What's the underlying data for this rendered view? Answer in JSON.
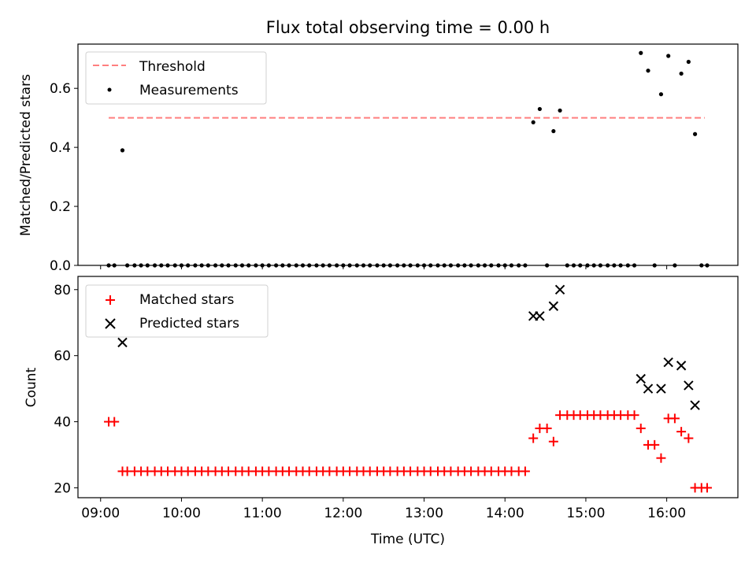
{
  "title": "Flux total observing time = 0.00 h",
  "chart_data": [
    {
      "type": "scatter",
      "ylabel": "Matched/Predicted stars",
      "ylim": [
        0,
        0.75
      ],
      "yticks": [
        "0.0",
        "0.2",
        "0.4",
        "0.6"
      ],
      "yticks_values": [
        0.0,
        0.2,
        0.4,
        0.6
      ],
      "xlim_hours": [
        8.72,
        16.88
      ],
      "threshold": {
        "name": "Threshold",
        "value": 0.5,
        "x_range": [
          9.1,
          16.47
        ],
        "color": "#ff7f7f"
      },
      "series": [
        {
          "name": "Measurements",
          "color": "#000000",
          "points": [
            [
              9.1,
              0
            ],
            [
              9.17,
              0
            ],
            [
              9.27,
              0.39
            ],
            [
              9.33,
              0
            ],
            [
              9.42,
              0
            ],
            [
              9.5,
              0
            ],
            [
              9.58,
              0
            ],
            [
              9.67,
              0
            ],
            [
              9.75,
              0
            ],
            [
              9.83,
              0
            ],
            [
              9.92,
              0
            ],
            [
              10.0,
              0
            ],
            [
              10.08,
              0
            ],
            [
              10.17,
              0
            ],
            [
              10.25,
              0
            ],
            [
              10.33,
              0
            ],
            [
              10.42,
              0
            ],
            [
              10.5,
              0
            ],
            [
              10.58,
              0
            ],
            [
              10.67,
              0
            ],
            [
              10.75,
              0
            ],
            [
              10.83,
              0
            ],
            [
              10.92,
              0
            ],
            [
              11.0,
              0
            ],
            [
              11.08,
              0
            ],
            [
              11.17,
              0
            ],
            [
              11.25,
              0
            ],
            [
              11.33,
              0
            ],
            [
              11.42,
              0
            ],
            [
              11.5,
              0
            ],
            [
              11.58,
              0
            ],
            [
              11.67,
              0
            ],
            [
              11.75,
              0
            ],
            [
              11.83,
              0
            ],
            [
              11.92,
              0
            ],
            [
              12.0,
              0
            ],
            [
              12.08,
              0
            ],
            [
              12.17,
              0
            ],
            [
              12.25,
              0
            ],
            [
              12.33,
              0
            ],
            [
              12.42,
              0
            ],
            [
              12.5,
              0
            ],
            [
              12.58,
              0
            ],
            [
              12.67,
              0
            ],
            [
              12.75,
              0
            ],
            [
              12.83,
              0
            ],
            [
              12.92,
              0
            ],
            [
              13.0,
              0
            ],
            [
              13.08,
              0
            ],
            [
              13.17,
              0
            ],
            [
              13.25,
              0
            ],
            [
              13.33,
              0
            ],
            [
              13.42,
              0
            ],
            [
              13.5,
              0
            ],
            [
              13.58,
              0
            ],
            [
              13.67,
              0
            ],
            [
              13.75,
              0
            ],
            [
              13.83,
              0
            ],
            [
              13.92,
              0
            ],
            [
              14.0,
              0
            ],
            [
              14.08,
              0
            ],
            [
              14.17,
              0
            ],
            [
              14.25,
              0
            ],
            [
              14.35,
              0.485
            ],
            [
              14.43,
              0.53
            ],
            [
              14.52,
              0
            ],
            [
              14.6,
              0.455
            ],
            [
              14.68,
              0.525
            ],
            [
              14.77,
              0
            ],
            [
              14.85,
              0
            ],
            [
              14.93,
              0
            ],
            [
              15.02,
              0
            ],
            [
              15.1,
              0
            ],
            [
              15.18,
              0
            ],
            [
              15.27,
              0
            ],
            [
              15.35,
              0
            ],
            [
              15.43,
              0
            ],
            [
              15.52,
              0
            ],
            [
              15.6,
              0
            ],
            [
              15.68,
              0.72
            ],
            [
              15.77,
              0.66
            ],
            [
              15.85,
              0
            ],
            [
              15.93,
              0.58
            ],
            [
              16.02,
              0.71
            ],
            [
              16.1,
              0
            ],
            [
              16.18,
              0.65
            ],
            [
              16.27,
              0.69
            ],
            [
              16.35,
              0.445
            ],
            [
              16.43,
              0
            ],
            [
              16.5,
              0
            ]
          ]
        }
      ]
    },
    {
      "type": "scatter",
      "xlabel": "Time (UTC)",
      "ylabel": "Count",
      "ylim": [
        17,
        84
      ],
      "yticks": [
        "20",
        "40",
        "60",
        "80"
      ],
      "yticks_values": [
        20,
        40,
        60,
        80
      ],
      "xlim_hours": [
        8.72,
        16.88
      ],
      "xticks": [
        "09:00",
        "10:00",
        "11:00",
        "12:00",
        "13:00",
        "14:00",
        "15:00",
        "16:00"
      ],
      "xticks_values": [
        9,
        10,
        11,
        12,
        13,
        14,
        15,
        16
      ],
      "series": [
        {
          "name": "Matched stars",
          "marker": "plus",
          "color": "#ff0000",
          "points": [
            [
              9.1,
              40
            ],
            [
              9.17,
              40
            ],
            [
              9.27,
              25
            ],
            [
              9.33,
              25
            ],
            [
              9.42,
              25
            ],
            [
              9.5,
              25
            ],
            [
              9.58,
              25
            ],
            [
              9.67,
              25
            ],
            [
              9.75,
              25
            ],
            [
              9.83,
              25
            ],
            [
              9.92,
              25
            ],
            [
              10.0,
              25
            ],
            [
              10.08,
              25
            ],
            [
              10.17,
              25
            ],
            [
              10.25,
              25
            ],
            [
              10.33,
              25
            ],
            [
              10.42,
              25
            ],
            [
              10.5,
              25
            ],
            [
              10.58,
              25
            ],
            [
              10.67,
              25
            ],
            [
              10.75,
              25
            ],
            [
              10.83,
              25
            ],
            [
              10.92,
              25
            ],
            [
              11.0,
              25
            ],
            [
              11.08,
              25
            ],
            [
              11.17,
              25
            ],
            [
              11.25,
              25
            ],
            [
              11.33,
              25
            ],
            [
              11.42,
              25
            ],
            [
              11.5,
              25
            ],
            [
              11.58,
              25
            ],
            [
              11.67,
              25
            ],
            [
              11.75,
              25
            ],
            [
              11.83,
              25
            ],
            [
              11.92,
              25
            ],
            [
              12.0,
              25
            ],
            [
              12.08,
              25
            ],
            [
              12.17,
              25
            ],
            [
              12.25,
              25
            ],
            [
              12.33,
              25
            ],
            [
              12.42,
              25
            ],
            [
              12.5,
              25
            ],
            [
              12.58,
              25
            ],
            [
              12.67,
              25
            ],
            [
              12.75,
              25
            ],
            [
              12.83,
              25
            ],
            [
              12.92,
              25
            ],
            [
              13.0,
              25
            ],
            [
              13.08,
              25
            ],
            [
              13.17,
              25
            ],
            [
              13.25,
              25
            ],
            [
              13.33,
              25
            ],
            [
              13.42,
              25
            ],
            [
              13.5,
              25
            ],
            [
              13.58,
              25
            ],
            [
              13.67,
              25
            ],
            [
              13.75,
              25
            ],
            [
              13.83,
              25
            ],
            [
              13.92,
              25
            ],
            [
              14.0,
              25
            ],
            [
              14.08,
              25
            ],
            [
              14.17,
              25
            ],
            [
              14.25,
              25
            ],
            [
              14.35,
              35
            ],
            [
              14.43,
              38
            ],
            [
              14.52,
              38
            ],
            [
              14.6,
              34
            ],
            [
              14.68,
              42
            ],
            [
              14.77,
              42
            ],
            [
              14.85,
              42
            ],
            [
              14.93,
              42
            ],
            [
              15.02,
              42
            ],
            [
              15.1,
              42
            ],
            [
              15.18,
              42
            ],
            [
              15.27,
              42
            ],
            [
              15.35,
              42
            ],
            [
              15.43,
              42
            ],
            [
              15.52,
              42
            ],
            [
              15.6,
              42
            ],
            [
              15.68,
              38
            ],
            [
              15.77,
              33
            ],
            [
              15.85,
              33
            ],
            [
              15.93,
              29
            ],
            [
              16.02,
              41
            ],
            [
              16.1,
              41
            ],
            [
              16.18,
              37
            ],
            [
              16.27,
              35
            ],
            [
              16.35,
              20
            ],
            [
              16.43,
              20
            ],
            [
              16.5,
              20
            ]
          ]
        },
        {
          "name": "Predicted stars",
          "marker": "x",
          "color": "#000000",
          "points": [
            [
              9.27,
              64
            ],
            [
              14.35,
              72
            ],
            [
              14.43,
              72
            ],
            [
              14.6,
              75
            ],
            [
              14.68,
              80
            ],
            [
              15.68,
              53
            ],
            [
              15.77,
              50
            ],
            [
              15.93,
              50
            ],
            [
              16.02,
              58
            ],
            [
              16.18,
              57
            ],
            [
              16.27,
              51
            ],
            [
              16.35,
              45
            ]
          ]
        }
      ]
    }
  ]
}
